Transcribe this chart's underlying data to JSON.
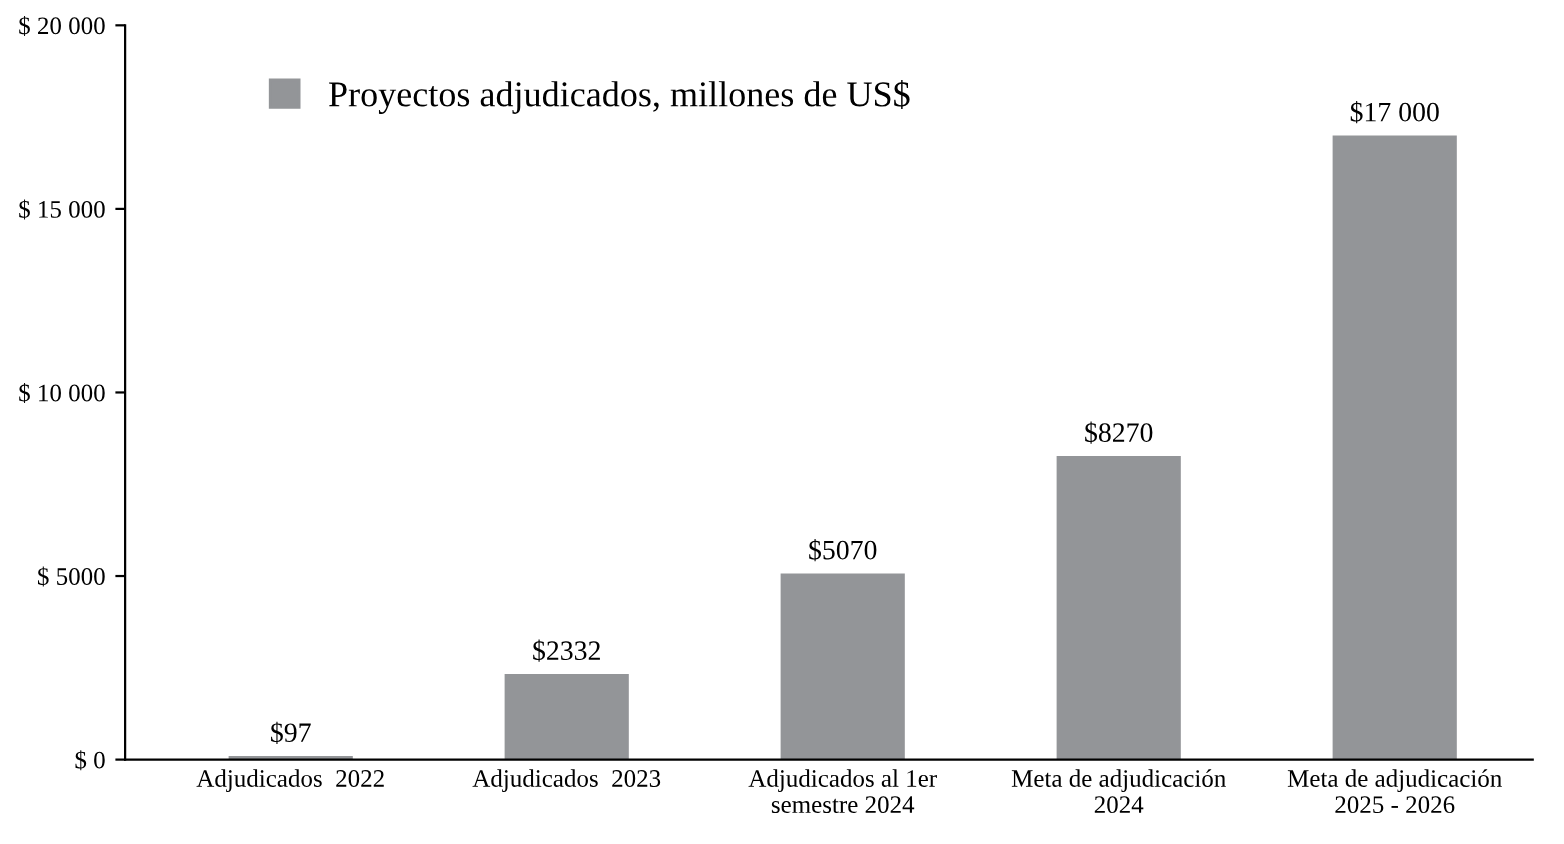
{
  "chart_data": {
    "type": "bar",
    "categories": [
      "Adjudicados  2022",
      "Adjudicados  2023",
      "Adjudicados al 1er\nsemestre 2024",
      "Meta de adjudicación\n2024",
      "Meta de adjudicación\n2025 - 2026"
    ],
    "series": [
      {
        "name": "Proyectos adjudicados, millones de US$",
        "color": "#939598",
        "values": [
          97,
          2332,
          5070,
          8270,
          17000
        ],
        "value_labels": [
          "$97",
          "$2332",
          "$5070",
          "$8270",
          "$17 000"
        ]
      }
    ],
    "ylim": [
      0,
      20000
    ],
    "yticks": [
      {
        "value": 0,
        "label": "$ 0"
      },
      {
        "value": 5000,
        "label": "$ 5000"
      },
      {
        "value": 10000,
        "label": "$ 10 000"
      },
      {
        "value": 15000,
        "label": "$ 15 000"
      },
      {
        "value": 20000,
        "label": "$ 20 000"
      }
    ],
    "grid": false,
    "legend": "top left"
  }
}
